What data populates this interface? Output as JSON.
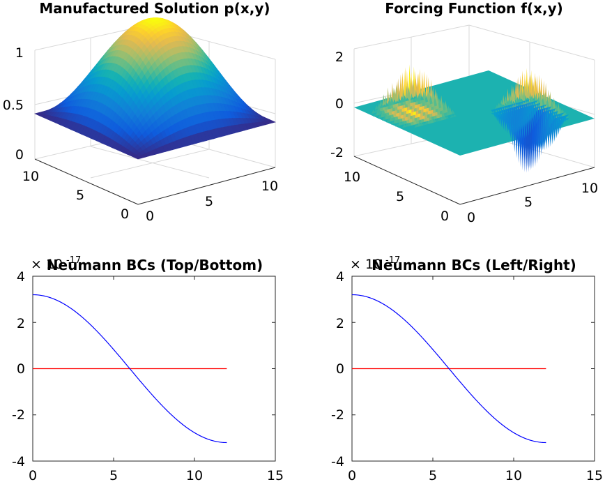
{
  "figure": {
    "background": "#ffffff",
    "panels": 4,
    "layout": "2x2 grid"
  },
  "chart_data": [
    {
      "type": "surface",
      "title": "Manufactured Solution p(x,y)",
      "xlabel": "",
      "ylabel": "",
      "zlabel": "",
      "x_ticks": [
        "0",
        "5",
        "10"
      ],
      "y_ticks": [
        "0",
        "5",
        "10"
      ],
      "z_ticks": [
        "0",
        "0.5",
        "1"
      ],
      "xlim": [
        0,
        12
      ],
      "ylim": [
        0,
        12
      ],
      "zlim": [
        0,
        1
      ],
      "function": "sin(pi*x/12)*sin(pi*y/12)",
      "peak": {
        "x": 6,
        "y": 6,
        "z": 1
      },
      "colormap": "parula",
      "grid": true
    },
    {
      "type": "surface",
      "title": "Forcing Function f(x,y)",
      "xlabel": "",
      "ylabel": "",
      "zlabel": "",
      "x_ticks": [
        "0",
        "5",
        "10"
      ],
      "y_ticks": [
        "0",
        "5",
        "10"
      ],
      "z_ticks": [
        "-2",
        "0",
        "2"
      ],
      "xlim": [
        0,
        12
      ],
      "ylim": [
        0,
        12
      ],
      "zlim": [
        -2.5,
        2.5
      ],
      "description_of_shape": "flat zero plane with two oscillating spike bands",
      "spike_bands": [
        {
          "x_range": [
            0,
            5
          ],
          "y_range": [
            6,
            11
          ],
          "z_min": 0,
          "z_max": 2.6
        },
        {
          "x_range": [
            7,
            11
          ],
          "y_range": [
            1,
            6
          ],
          "z_min": -3.3,
          "z_max": 2.4
        }
      ],
      "colormap": "parula",
      "grid": true
    },
    {
      "type": "line",
      "title": "Neumann BCs (Top/Bottom)",
      "xlabel": "",
      "ylabel": "",
      "exponent_label": "× 10",
      "exponent_power": "-17",
      "xlim": [
        0,
        15
      ],
      "ylim": [
        -4,
        4
      ],
      "x_ticks": [
        "0",
        "5",
        "10",
        "15"
      ],
      "y_ticks": [
        "4",
        "2",
        "0",
        "-2",
        "-4"
      ],
      "series": [
        {
          "color": "#0000ff",
          "x": [
            0,
            12
          ],
          "function": "3.2*cos(pi*x/12)"
        },
        {
          "color": "#ff0000",
          "x": [
            0,
            12
          ],
          "y": [
            0,
            0
          ]
        }
      ],
      "grid": false
    },
    {
      "type": "line",
      "title": "Neumann BCs (Left/Right)",
      "xlabel": "",
      "ylabel": "",
      "exponent_label": "× 10",
      "exponent_power": "-17",
      "xlim": [
        0,
        15
      ],
      "ylim": [
        -4,
        4
      ],
      "x_ticks": [
        "0",
        "5",
        "10",
        "15"
      ],
      "y_ticks": [
        "4",
        "2",
        "0",
        "-2",
        "-4"
      ],
      "series": [
        {
          "color": "#0000ff",
          "x": [
            0,
            12
          ],
          "function": "3.2*cos(pi*x/12)"
        },
        {
          "color": "#ff0000",
          "x": [
            0,
            12
          ],
          "y": [
            0,
            0
          ]
        }
      ],
      "grid": false
    }
  ]
}
